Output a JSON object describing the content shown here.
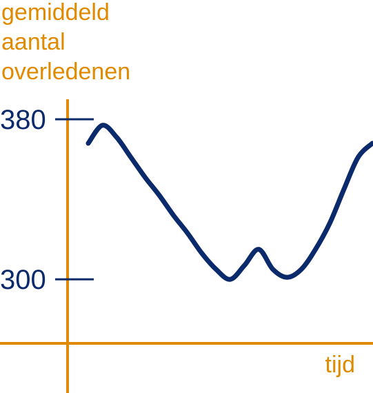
{
  "chart_data": {
    "type": "line",
    "y_label": [
      "gemiddeld",
      "aantal",
      "overledenen"
    ],
    "x_label": "tijd",
    "categories": [
      null,
      null,
      null,
      null,
      null,
      null,
      null,
      null,
      null,
      null,
      null,
      null,
      null,
      null,
      null,
      null,
      null,
      null,
      null,
      null,
      null
    ],
    "series": [
      {
        "name": null,
        "color": "#0b2a6b",
        "values": [
          368,
          377,
          371,
          361,
          351,
          342,
          332,
          323,
          313,
          305,
          300,
          307,
          315,
          305,
          301,
          305,
          315,
          328,
          345,
          361,
          368
        ]
      }
    ],
    "ylim": [
      268,
      390
    ],
    "yticks": [
      300,
      380
    ],
    "axis_color": "#e08a00",
    "tick_color": "#0b2a6b"
  }
}
